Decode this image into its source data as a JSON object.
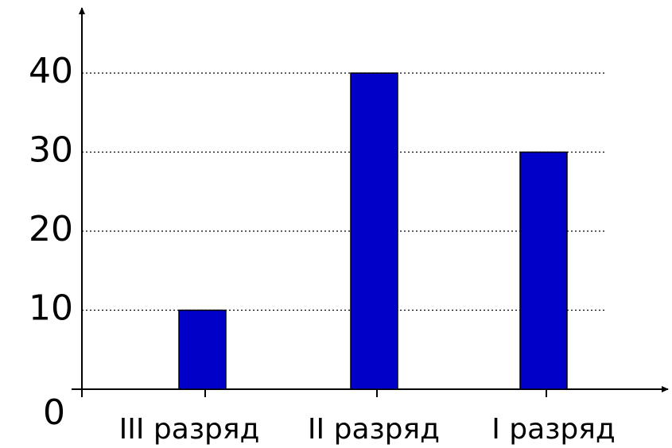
{
  "chart_data": {
    "type": "bar",
    "categories": [
      "III разряд",
      "II разряд",
      "I разряд"
    ],
    "values": [
      10,
      40,
      30
    ],
    "color": "#0000c8",
    "ylim": [
      0,
      48
    ],
    "yticks": [
      0,
      10,
      20,
      30,
      40
    ],
    "grid": true
  }
}
